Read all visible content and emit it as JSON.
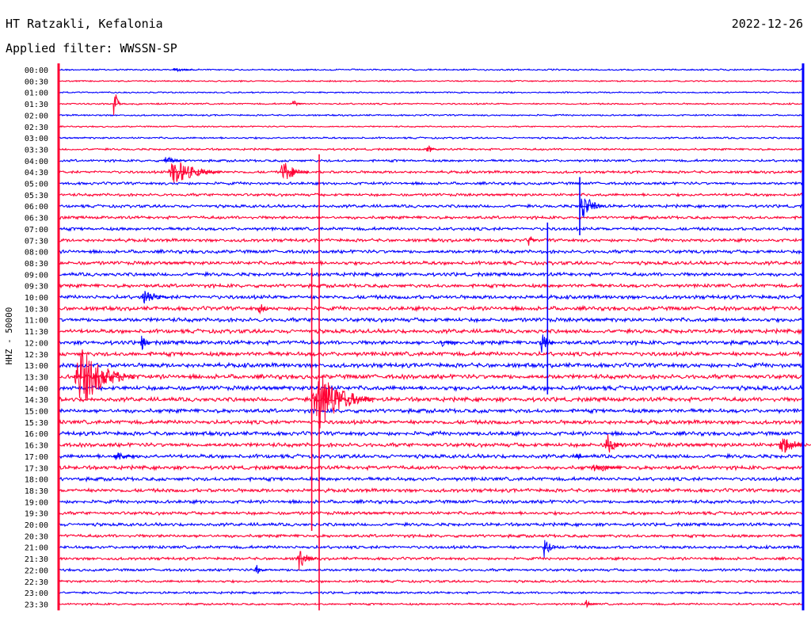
{
  "header": {
    "station": "HT Ratzakli, Kefalonia",
    "date": "2022-12-26",
    "filter": "Applied filter: WWSSN-SP"
  },
  "chart_data": {
    "type": "line",
    "title": "HT Ratzakli, Kefalonia",
    "subtitle": "Applied filter: WWSSN-SP",
    "ylabel": "HHZ - 50000",
    "grid": false,
    "colors": {
      "blue": "#0000ff",
      "red": "#ff0033"
    },
    "rows": [
      "00:00",
      "00:30",
      "01:00",
      "01:30",
      "02:00",
      "02:30",
      "03:00",
      "03:30",
      "04:00",
      "04:30",
      "05:00",
      "05:30",
      "06:00",
      "06:30",
      "07:00",
      "07:30",
      "08:00",
      "08:30",
      "09:00",
      "09:30",
      "10:00",
      "10:30",
      "11:00",
      "11:30",
      "12:00",
      "12:30",
      "13:00",
      "13:30",
      "14:00",
      "14:30",
      "15:00",
      "15:30",
      "16:00",
      "16:30",
      "17:00",
      "17:30",
      "18:00",
      "18:30",
      "19:00",
      "19:30",
      "20:00",
      "20:30",
      "21:00",
      "21:30",
      "22:00",
      "22:30",
      "23:00",
      "23:30"
    ],
    "row_colors": [
      "blue",
      "red"
    ],
    "x_range": [
      0,
      30
    ],
    "x_unit": "minutes",
    "noise_levels": [
      0.8,
      0.7,
      0.7,
      0.8,
      0.8,
      0.7,
      0.9,
      1.0,
      1.2,
      1.3,
      1.4,
      1.4,
      1.5,
      1.5,
      1.6,
      1.6,
      1.7,
      1.8,
      1.8,
      1.8,
      1.9,
      2.0,
      2.0,
      2.0,
      2.0,
      2.1,
      2.2,
      2.2,
      2.2,
      2.1,
      2.0,
      2.0,
      2.0,
      2.0,
      1.9,
      1.9,
      1.8,
      1.8,
      1.7,
      1.6,
      1.6,
      1.5,
      1.5,
      1.4,
      1.3,
      1.2,
      1.1,
      1.0
    ],
    "events": [
      {
        "row": "00:00",
        "minute": 4.6,
        "amplitude": 4,
        "duration": 0.8
      },
      {
        "row": "01:30",
        "minute": 2.2,
        "amplitude": 26,
        "duration": 0.3
      },
      {
        "row": "01:30",
        "minute": 9.4,
        "amplitude": 5,
        "duration": 0.5
      },
      {
        "row": "03:30",
        "minute": 14.8,
        "amplitude": 6,
        "duration": 0.6
      },
      {
        "row": "04:00",
        "minute": 4.2,
        "amplitude": 6,
        "duration": 1.0
      },
      {
        "row": "04:30",
        "minute": 4.4,
        "amplitude": 18,
        "duration": 2.2
      },
      {
        "row": "04:30",
        "minute": 8.9,
        "amplitude": 16,
        "duration": 1.2
      },
      {
        "row": "06:00",
        "minute": 21.0,
        "amplitude": 20,
        "duration": 1.0
      },
      {
        "row": "07:30",
        "minute": 18.9,
        "amplitude": 8,
        "duration": 0.4
      },
      {
        "row": "10:00",
        "minute": 3.3,
        "amplitude": 12,
        "duration": 1.2
      },
      {
        "row": "10:30",
        "minute": 8.0,
        "amplitude": 10,
        "duration": 0.6
      },
      {
        "row": "12:00",
        "minute": 3.3,
        "amplitude": 12,
        "duration": 0.4
      },
      {
        "row": "12:00",
        "minute": 15.4,
        "amplitude": 8,
        "duration": 0.7
      },
      {
        "row": "12:00",
        "minute": 19.4,
        "amplitude": 14,
        "duration": 0.6
      },
      {
        "row": "13:30",
        "minute": 0.6,
        "amplitude": 40,
        "duration": 2.5
      },
      {
        "row": "14:30",
        "minute": 10.2,
        "amplitude": 40,
        "duration": 2.5
      },
      {
        "row": "16:30",
        "minute": 22.0,
        "amplitude": 16,
        "duration": 0.8
      },
      {
        "row": "16:30",
        "minute": 29.0,
        "amplitude": 14,
        "duration": 1.4
      },
      {
        "row": "17:00",
        "minute": 2.2,
        "amplitude": 8,
        "duration": 1.0
      },
      {
        "row": "17:00",
        "minute": 20.8,
        "amplitude": 10,
        "duration": 0.4
      },
      {
        "row": "17:30",
        "minute": 21.5,
        "amplitude": 8,
        "duration": 1.2
      },
      {
        "row": "21:00",
        "minute": 19.5,
        "amplitude": 14,
        "duration": 0.6
      },
      {
        "row": "21:30",
        "minute": 9.6,
        "amplitude": 16,
        "duration": 0.8
      },
      {
        "row": "22:00",
        "minute": 7.9,
        "amplitude": 8,
        "duration": 0.5
      },
      {
        "row": "23:30",
        "minute": 21.2,
        "amplitude": 6,
        "duration": 0.5
      }
    ],
    "spikes": [
      {
        "minute": 0.0,
        "from_row": "00:00",
        "to_row": "23:30",
        "color": "red"
      },
      {
        "minute": 10.5,
        "from_row": "04:00",
        "to_row": "23:30",
        "color": "red"
      },
      {
        "minute": 10.2,
        "from_row": "09:00",
        "to_row": "20:00",
        "color": "red"
      },
      {
        "minute": 19.7,
        "from_row": "07:00",
        "to_row": "14:00",
        "color": "blue"
      },
      {
        "minute": 21.0,
        "from_row": "05:00",
        "to_row": "07:00",
        "color": "blue"
      },
      {
        "minute": 30.0,
        "from_row": "00:00",
        "to_row": "23:30",
        "color": "blue"
      }
    ]
  }
}
